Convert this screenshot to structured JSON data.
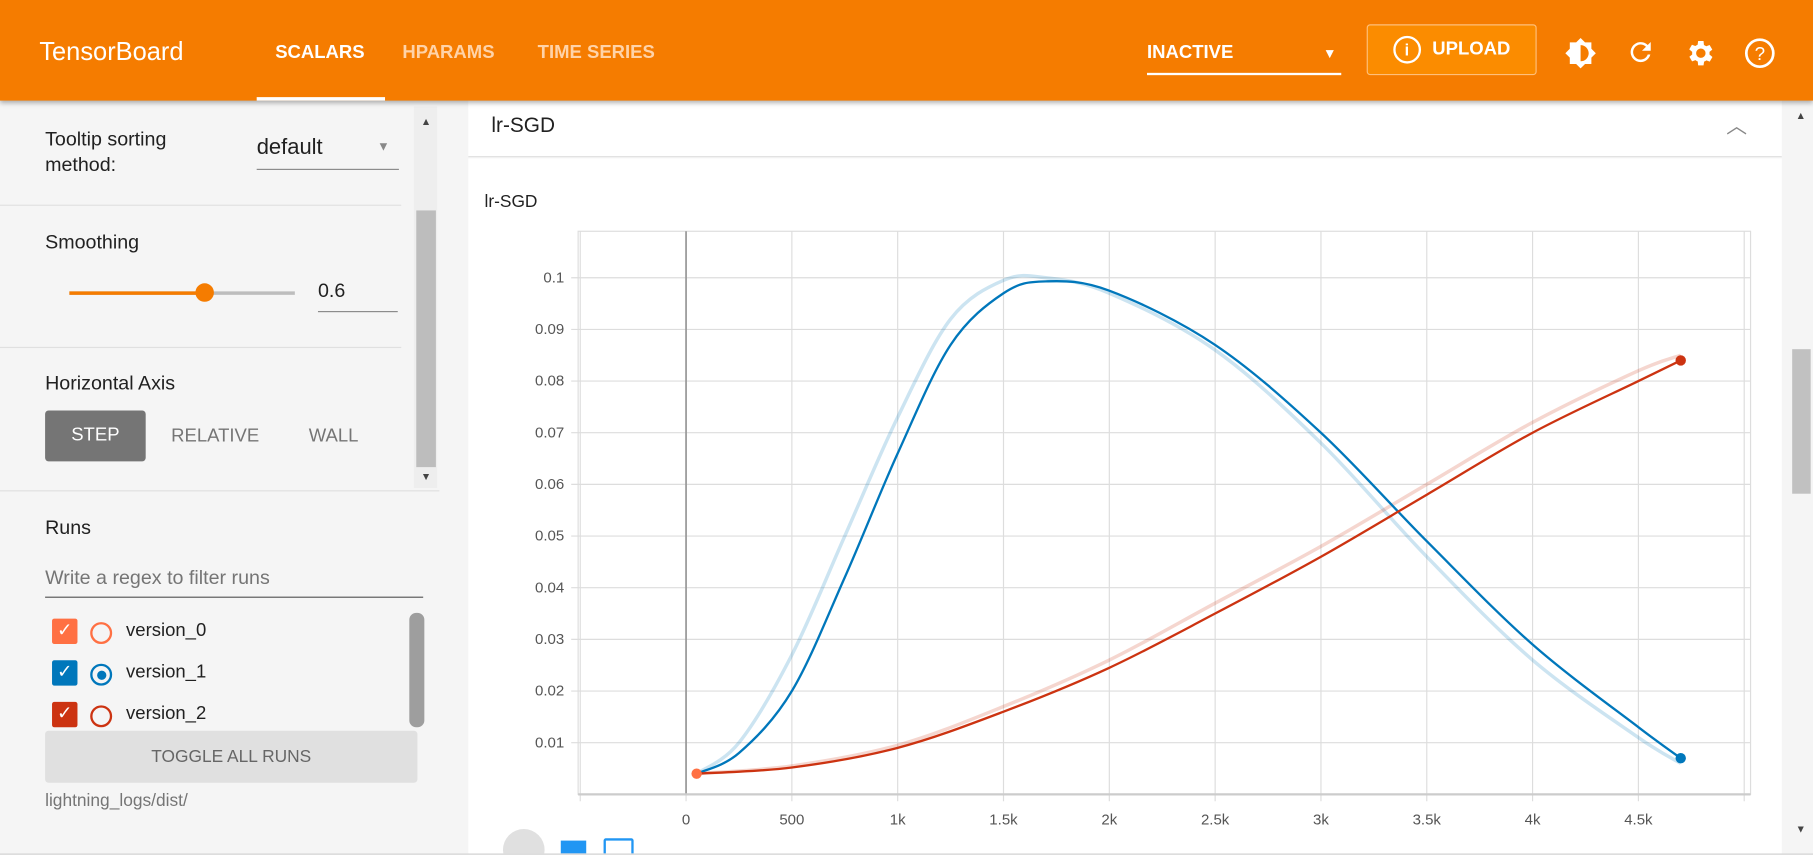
{
  "header": {
    "brand": "TensorBoard",
    "tabs": [
      {
        "label": "SCALARS",
        "active": true
      },
      {
        "label": "HPARAMS"
      },
      {
        "label": "TIME SERIES"
      }
    ],
    "status_select": "INACTIVE",
    "upload_label": "UPLOAD",
    "icons": [
      "info-icon",
      "theme-toggle-icon",
      "refresh-icon",
      "settings-icon",
      "help-icon"
    ],
    "accent": "#f57c00"
  },
  "sidebar": {
    "tooltip_sorting": {
      "label": "Tooltip sorting method:",
      "value": "default"
    },
    "smoothing": {
      "label": "Smoothing",
      "value": "0.6",
      "fraction": 0.6
    },
    "horizontal_axis": {
      "label": "Horizontal Axis",
      "options": [
        "STEP",
        "RELATIVE",
        "WALL"
      ],
      "selected": "STEP"
    },
    "runs": {
      "label": "Runs",
      "filter_placeholder": "Write a regex to filter runs",
      "items": [
        {
          "name": "version_0",
          "checked": true,
          "selected": false,
          "color": "#ff7043"
        },
        {
          "name": "version_1",
          "checked": true,
          "selected": true,
          "color": "#0077bb"
        },
        {
          "name": "version_2",
          "checked": true,
          "selected": false,
          "color": "#cc3311"
        }
      ],
      "toggle_all": "TOGGLE ALL RUNS",
      "log_dir": "lightning_logs/dist/"
    }
  },
  "card": {
    "header_title": "lr-SGD"
  },
  "chart_data": {
    "type": "line",
    "title": "lr-SGD",
    "xlabel": "",
    "ylabel": "",
    "xlim": [
      -510,
      5030
    ],
    "ylim": [
      0,
      0.109
    ],
    "grid": true,
    "xticks": [
      0,
      500,
      1000,
      1500,
      2000,
      2500,
      3000,
      3500,
      4000,
      4500
    ],
    "xtick_labels": [
      "0",
      "500",
      "1k",
      "1.5k",
      "2k",
      "2.5k",
      "3k",
      "3.5k",
      "4k",
      "4.5k"
    ],
    "yticks": [
      0.01,
      0.02,
      0.03,
      0.04,
      0.05,
      0.06,
      0.07,
      0.08,
      0.09,
      0.1
    ],
    "ytick_labels": [
      "0.01",
      "0.02",
      "0.03",
      "0.04",
      "0.05",
      "0.06",
      "0.07",
      "0.08",
      "0.09",
      "0.1"
    ],
    "series": [
      {
        "name": "version_0",
        "color": "#ff7043",
        "x": [
          50
        ],
        "raw": [
          0.004
        ],
        "smoothed": [
          0.004
        ]
      },
      {
        "name": "version_1",
        "color": "#0077bb",
        "x": [
          50,
          250,
          500,
          750,
          1000,
          1250,
          1500,
          1700,
          2000,
          2500,
          3000,
          3500,
          4000,
          4500,
          4700
        ],
        "raw": [
          0.004,
          0.01,
          0.027,
          0.05,
          0.073,
          0.092,
          0.0995,
          0.1,
          0.097,
          0.086,
          0.068,
          0.046,
          0.026,
          0.011,
          0.006
        ],
        "smoothed": [
          0.004,
          0.008,
          0.02,
          0.042,
          0.066,
          0.087,
          0.097,
          0.0993,
          0.0975,
          0.087,
          0.07,
          0.049,
          0.029,
          0.013,
          0.007
        ]
      },
      {
        "name": "version_2",
        "color": "#cc3311",
        "x": [
          50,
          500,
          1000,
          1500,
          2000,
          2500,
          3000,
          3500,
          4000,
          4500,
          4700
        ],
        "raw": [
          0.004,
          0.0055,
          0.0095,
          0.017,
          0.026,
          0.037,
          0.048,
          0.06,
          0.072,
          0.082,
          0.085
        ],
        "smoothed": [
          0.004,
          0.0052,
          0.009,
          0.016,
          0.0245,
          0.035,
          0.046,
          0.058,
          0.07,
          0.08,
          0.084
        ]
      }
    ]
  }
}
